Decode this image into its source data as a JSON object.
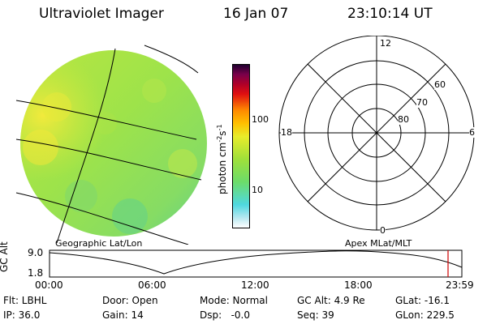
{
  "header": {
    "title": "Ultraviolet Imager",
    "date": "16 Jan 07",
    "time": "23:10:14 UT"
  },
  "globe": {
    "caption": "Geographic Lat/Lon",
    "dominant_colors": [
      "#9ee34a",
      "#c6ea3a",
      "#e4e838",
      "#7ed96a",
      "#56cf8e"
    ]
  },
  "colorbar": {
    "unit_prefix": "photon cm",
    "unit_exp1": "-2",
    "unit_mid": "s",
    "unit_exp2": "-1",
    "tick_100": "100",
    "tick_10": "10",
    "scale": "log",
    "colors": [
      "#ffffff",
      "#b8e8f0",
      "#4fd8e0",
      "#6cdc6a",
      "#9fe03a",
      "#e8ec2a",
      "#ffc000",
      "#ff8a00",
      "#e01010",
      "#b00028",
      "#7a004a",
      "#200030"
    ]
  },
  "polar": {
    "caption": "Apex MLat/MLT",
    "label_12": "12",
    "label_6": "6",
    "label_18": "18",
    "label_0": "0",
    "label_60": "60",
    "label_70": "70",
    "label_80": "80"
  },
  "altplot": {
    "axis_label": "GC Alt",
    "y_top": "9.0",
    "y_bottom": "1.8",
    "x_ticks": [
      "00:00",
      "06:00",
      "12:00",
      "18:00",
      "23:59"
    ],
    "marker_color": "#d00000"
  },
  "meta": {
    "row1": {
      "flt": "Flt: LBHL",
      "door": "Door: Open",
      "mode": "Mode: Normal",
      "gcalt": "GC Alt: 4.9 Re",
      "glat": "GLat: -16.1"
    },
    "row2": {
      "ip": "IP: 36.0",
      "gain": "Gain: 14",
      "dsp": "Dsp:   -0.0",
      "seq": "Seq: 39",
      "glon": "GLon: 229.5"
    }
  }
}
